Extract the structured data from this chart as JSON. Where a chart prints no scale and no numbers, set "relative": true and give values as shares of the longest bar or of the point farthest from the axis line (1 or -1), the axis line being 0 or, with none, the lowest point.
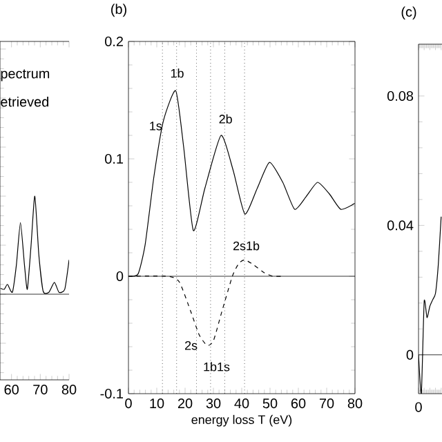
{
  "chart_data": [
    {
      "type": "line",
      "relative": true,
      "xlim": [
        56,
        80
      ],
      "xticks": [
        60,
        70,
        80
      ],
      "tick_labels": "x",
      "annotations": [
        "pectrum",
        "etrieved"
      ],
      "ref_lines": [
        {
          "axis": "y",
          "value": 0
        }
      ],
      "series": [
        {
          "color": "#000000",
          "line_style": "solid",
          "x": [
            56.2,
            57.5,
            58.6,
            60.3,
            61.7,
            63.1,
            64.5,
            65.5,
            66.8,
            68.1,
            69.5,
            71,
            73,
            74.9,
            76.5,
            78.5,
            80
          ],
          "values": [
            0.06,
            0.05,
            0.1,
            0.02,
            0.3,
            0.73,
            0.3,
            0.05,
            0.5,
            1.0,
            0.4,
            0.03,
            0.02,
            0.12,
            0.02,
            0.05,
            0.35
          ]
        }
      ]
    },
    {
      "type": "line",
      "title": "(b)",
      "xlabel": "energy loss T (eV)",
      "xlim": [
        0,
        80
      ],
      "xticks": [
        0,
        10,
        20,
        30,
        40,
        50,
        60,
        70,
        80
      ],
      "ylim": [
        -0.1,
        0.2
      ],
      "yticks": [
        -0.1,
        0,
        0.1,
        0.2
      ],
      "annotations": [
        {
          "text": "1s",
          "x": 9.6,
          "y": 0.128
        },
        {
          "text": "1b",
          "x": 17.2,
          "y": 0.173
        },
        {
          "text": "2b",
          "x": 34.3,
          "y": 0.134
        },
        {
          "text": "2s",
          "x": 22.1,
          "y": -0.059
        },
        {
          "text": "1b1s",
          "x": 31.1,
          "y": -0.077
        },
        {
          "text": "2s1b",
          "x": 41.6,
          "y": 0.026
        }
      ],
      "ref_lines": [
        {
          "axis": "y",
          "value": 0,
          "line_style": "solid"
        },
        {
          "axis": "x",
          "value": 12,
          "line_style": "dotted"
        },
        {
          "axis": "x",
          "value": 17,
          "line_style": "dotted"
        },
        {
          "axis": "x",
          "value": 24,
          "line_style": "dotted"
        },
        {
          "axis": "x",
          "value": 29,
          "line_style": "dotted"
        },
        {
          "axis": "x",
          "value": 34,
          "line_style": "dotted"
        },
        {
          "axis": "x",
          "value": 41,
          "line_style": "dotted"
        }
      ],
      "series": [
        {
          "color": "#000000",
          "line_style": "solid",
          "x": [
            0,
            3.4,
            5.9,
            9,
            12.3,
            16.7,
            19.5,
            22.9,
            27,
            32.7,
            37,
            41.1,
            45.5,
            49.8,
            54.5,
            58.7,
            62.8,
            66.8,
            71,
            75,
            79.9
          ],
          "values": [
            0,
            0.002,
            0.027,
            0.085,
            0.132,
            0.158,
            0.11,
            0.039,
            0.075,
            0.12,
            0.09,
            0.053,
            0.075,
            0.097,
            0.08,
            0.057,
            0.068,
            0.08,
            0.07,
            0.057,
            0.062
          ]
        },
        {
          "color": "#000000",
          "line_style": "dashed",
          "x": [
            0,
            14,
            18,
            22,
            25,
            27.8,
            30,
            33,
            36.7,
            39,
            41.1,
            44,
            48,
            51,
            55
          ],
          "values": [
            0,
            0,
            -0.005,
            -0.03,
            -0.05,
            -0.059,
            -0.055,
            -0.03,
            0,
            0.011,
            0.014,
            0.01,
            0.003,
            0,
            0
          ]
        }
      ]
    },
    {
      "type": "line",
      "title": "(c)",
      "categories": [
        null,
        null,
        null,
        null,
        null,
        null,
        null,
        null,
        null
      ],
      "annotations": [
        "0"
      ],
      "ylim": [
        -0.012,
        0.096
      ],
      "yticks": [
        0,
        0.04,
        0.08
      ],
      "ref_lines": [
        {
          "axis": "y",
          "value": 0
        }
      ],
      "series": [
        {
          "color": "#000000",
          "line_style": "solid",
          "values": [
            0,
            -0.012,
            0.0165,
            0.0115,
            0.015,
            0.017,
            0.019,
            0.028,
            0.0427
          ]
        }
      ]
    }
  ]
}
